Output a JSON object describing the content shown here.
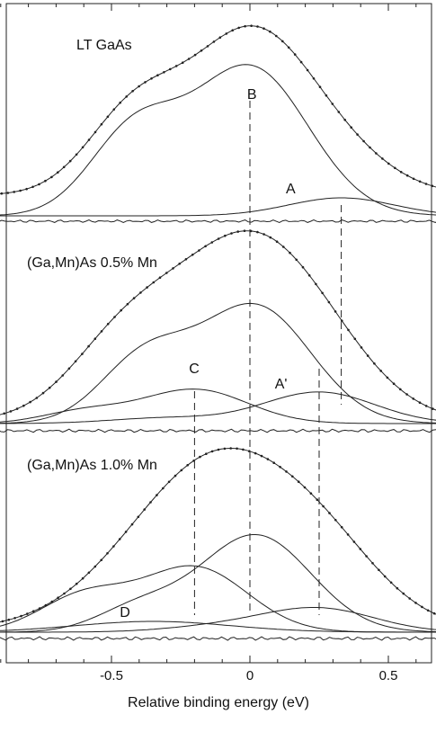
{
  "chart_data": {
    "type": "line",
    "xlabel": "Relative binding energy (eV)",
    "ylabel": "",
    "xlim": [
      -1.5,
      1.2
    ],
    "xticks": [
      "-1.5",
      "-1.0",
      "-0.5",
      "0",
      "0.5",
      "1.0"
    ],
    "panels": [
      {
        "label": "LT GaAs",
        "peak_labels": [
          {
            "text": "B",
            "x": 0.0
          },
          {
            "text": "A",
            "x": 0.33
          }
        ]
      },
      {
        "label": "(Ga,Mn)As  0.5% Mn",
        "peak_labels": [
          {
            "text": "C",
            "x": -0.2
          },
          {
            "text": "A'",
            "x": 0.25
          }
        ]
      },
      {
        "label": "(Ga,Mn)As  1.0% Mn",
        "peak_labels": [
          {
            "text": "D",
            "x": -0.35
          }
        ]
      }
    ],
    "reference_lines_x": [
      -0.2,
      0.0,
      0.25,
      0.33
    ],
    "grid": false,
    "legend": "none"
  }
}
